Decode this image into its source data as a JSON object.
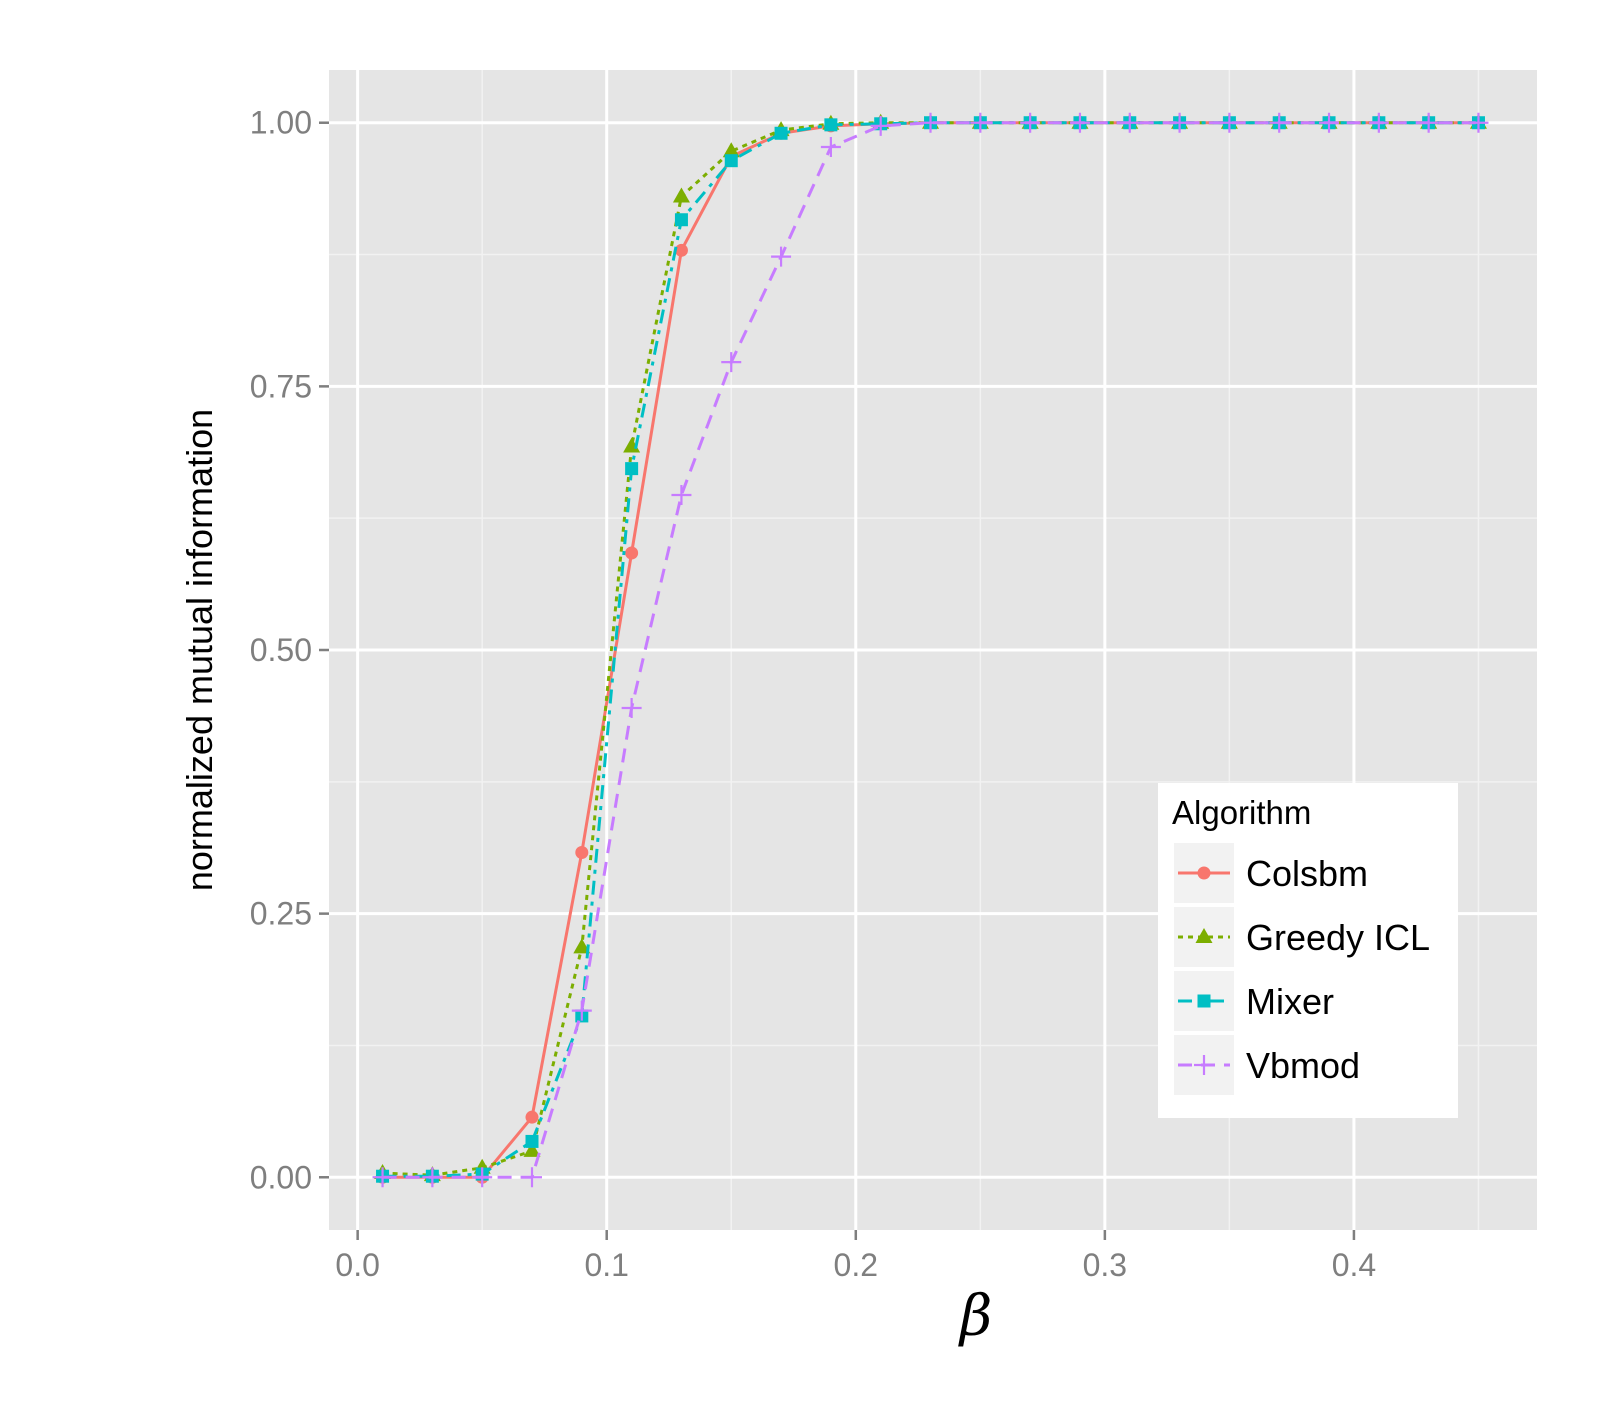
{
  "colors": {
    "Colsbm": "#f8766d",
    "Greedy ICL": "#7cae00",
    "Mixer": "#00bfc4",
    "Vbmod": "#c77cff",
    "panel_background": "#e5e5e5",
    "grid": "#ffffff"
  },
  "chart_data": {
    "type": "line",
    "xlabel": "β",
    "ylabel": "normalized mutual information",
    "xlim": [
      -0.0115,
      0.4735
    ],
    "ylim": [
      -0.05,
      1.05
    ],
    "x_ticks": [
      0.0,
      0.1,
      0.2,
      0.3,
      0.4
    ],
    "x_tick_labels": [
      "0.0",
      "0.1",
      "0.2",
      "0.3",
      "0.4"
    ],
    "y_ticks": [
      0.0,
      0.25,
      0.5,
      0.75,
      1.0
    ],
    "y_tick_labels": [
      "0.00",
      "0.25",
      "0.50",
      "0.75",
      "1.00"
    ],
    "grid": true,
    "legend": {
      "title": "Algorithm",
      "position": "right"
    },
    "x": [
      0.01,
      0.03,
      0.05,
      0.07,
      0.09,
      0.11,
      0.13,
      0.15,
      0.17,
      0.19,
      0.21,
      0.23,
      0.25,
      0.27,
      0.29,
      0.31,
      0.33,
      0.35,
      0.37,
      0.39,
      0.41,
      0.43,
      0.45
    ],
    "series": [
      {
        "name": "Colsbm",
        "line": "solid",
        "marker": "circle",
        "values": [
          0.0,
          0.0,
          0.0,
          0.057,
          0.308,
          0.592,
          0.879,
          0.968,
          0.99,
          0.997,
          0.999,
          1.0,
          1.0,
          1.0,
          1.0,
          1.0,
          1.0,
          1.0,
          1.0,
          1.0,
          1.0,
          1.0,
          1.0
        ]
      },
      {
        "name": "Greedy ICL",
        "line": "dotted",
        "marker": "triangle",
        "values": [
          0.004,
          0.002,
          0.009,
          0.025,
          0.218,
          0.693,
          0.93,
          0.973,
          0.993,
          0.999,
          1.0,
          1.0,
          1.0,
          1.0,
          1.0,
          1.0,
          1.0,
          1.0,
          1.0,
          1.0,
          1.0,
          1.0,
          1.0
        ]
      },
      {
        "name": "Mixer",
        "line": "dashdot",
        "marker": "square",
        "values": [
          0.001,
          0.001,
          0.003,
          0.034,
          0.153,
          0.672,
          0.908,
          0.964,
          0.99,
          0.998,
          0.999,
          1.0,
          1.0,
          1.0,
          1.0,
          1.0,
          1.0,
          1.0,
          1.0,
          1.0,
          1.0,
          1.0,
          1.0
        ]
      },
      {
        "name": "Vbmod",
        "line": "dashed",
        "marker": "plus",
        "values": [
          0.0,
          0.0,
          0.0,
          0.0,
          0.158,
          0.445,
          0.647,
          0.773,
          0.873,
          0.977,
          0.997,
          1.0,
          1.0,
          1.0,
          1.0,
          1.0,
          1.0,
          1.0,
          1.0,
          1.0,
          1.0,
          1.0,
          1.0
        ]
      }
    ]
  }
}
